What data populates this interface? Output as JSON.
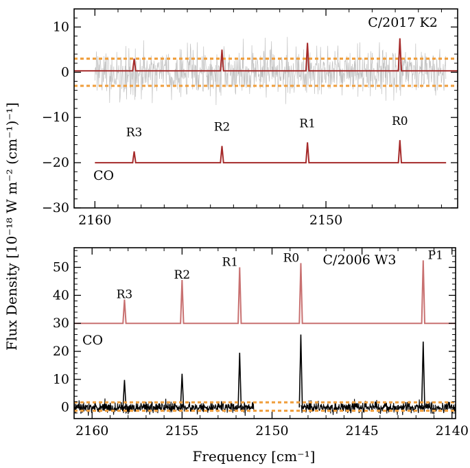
{
  "chart_data": [
    {
      "type": "line",
      "title": "C/2017 K2",
      "species_label": "CO",
      "xlabel": "Frequency [cm⁻¹]",
      "ylabel": "Flux Density [10⁻¹⁸ W m⁻² (cm⁻¹)⁻¹]",
      "xlim": [
        2160.9,
        2144.3
      ],
      "ylim": [
        -30,
        14
      ],
      "x_ticks": [
        2160,
        2150
      ],
      "x_tick_labels": [
        "2160",
        "2150"
      ],
      "y_ticks": [
        10,
        0,
        -10,
        -20,
        -30
      ],
      "y_tick_labels": [
        "10",
        "0",
        "−10",
        "−20",
        "−30"
      ],
      "noise_sigma": 3.0,
      "noise_range": [
        2160.0,
        2144.8
      ],
      "series": [
        {
          "name": "observed spectrum",
          "color": "#c0c0c0",
          "role": "noise"
        },
        {
          "name": "1-sigma uncertainty",
          "color": "#f0a040",
          "values": [
            3.0,
            -3.0
          ],
          "dashed": true
        },
        {
          "name": "model on data",
          "color": "#a52a2a",
          "baseline": 0.3,
          "lines": [
            {
              "label": "R3",
              "x": 2158.3,
              "y": 3.0
            },
            {
              "label": "R2",
              "x": 2154.5,
              "y": 5.0
            },
            {
              "label": "R1",
              "x": 2150.8,
              "y": 6.5
            },
            {
              "label": "R0",
              "x": 2146.8,
              "y": 7.5
            }
          ]
        },
        {
          "name": "CO model (offset)",
          "color": "#a52a2a",
          "baseline": -20,
          "range": [
            2160.0,
            2144.8
          ],
          "lines": [
            {
              "label": "R3",
              "x": 2158.3,
              "y": -17.5
            },
            {
              "label": "R2",
              "x": 2154.5,
              "y": -16.3
            },
            {
              "label": "R1",
              "x": 2150.8,
              "y": -15.5
            },
            {
              "label": "R0",
              "x": 2146.8,
              "y": -15.0
            }
          ]
        }
      ]
    },
    {
      "type": "line",
      "title": "C/2006 W3",
      "species_label": "CO",
      "xlabel": "Frequency [cm⁻¹]",
      "xlim": [
        2161.0,
        2139.8
      ],
      "ylim": [
        -4,
        57
      ],
      "x_ticks": [
        2160,
        2155,
        2150,
        2145,
        2140
      ],
      "x_tick_labels": [
        "2160",
        "2155",
        "2150",
        "2145",
        "2140"
      ],
      "y_ticks": [
        0,
        10,
        20,
        30,
        40,
        50
      ],
      "y_tick_labels": [
        "0",
        "10",
        "20",
        "30",
        "40",
        "50"
      ],
      "noise_sigma": 1.2,
      "noise_range": [
        2161.0,
        2139.8
      ],
      "gap": [
        2151.0,
        2148.4
      ],
      "series": [
        {
          "name": "observed spectrum",
          "color": "#000000",
          "role": "noise",
          "lines": [
            {
              "label": "R3",
              "x": 2158.2,
              "y": 9.8
            },
            {
              "label": "R2",
              "x": 2155.0,
              "y": 12.0
            },
            {
              "label": "R1",
              "x": 2151.8,
              "y": 19.5
            },
            {
              "label": "R0",
              "x": 2148.4,
              "y": 26.0
            },
            {
              "label": "P1",
              "x": 2141.6,
              "y": 23.5
            }
          ]
        },
        {
          "name": "1-sigma uncertainty",
          "color": "#f0a040",
          "values": [
            1.8,
            -1.2
          ],
          "dashed": true
        },
        {
          "name": "CO model (offset)",
          "color": "#c87070",
          "baseline": 30,
          "lines": [
            {
              "label": "R3",
              "x": 2158.2,
              "y": 38.5
            },
            {
              "label": "R2",
              "x": 2155.0,
              "y": 45.5
            },
            {
              "label": "R1",
              "x": 2151.8,
              "y": 50.0
            },
            {
              "label": "R0",
              "x": 2148.4,
              "y": 51.5
            },
            {
              "label": "P1",
              "x": 2141.6,
              "y": 52.5
            }
          ]
        }
      ]
    }
  ]
}
